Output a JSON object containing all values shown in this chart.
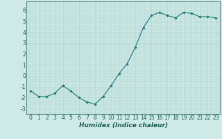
{
  "x": [
    0,
    1,
    2,
    3,
    4,
    5,
    6,
    7,
    8,
    9,
    10,
    11,
    12,
    13,
    14,
    15,
    16,
    17,
    18,
    19,
    20,
    21,
    22,
    23
  ],
  "y": [
    -1.4,
    -1.9,
    -1.9,
    -1.6,
    -0.9,
    -1.4,
    -2.0,
    -2.4,
    -2.6,
    -1.9,
    -0.9,
    0.2,
    1.1,
    2.6,
    4.4,
    5.5,
    5.8,
    5.5,
    5.3,
    5.8,
    5.7,
    5.4,
    5.4,
    5.3
  ],
  "line_color": "#1a7a6e",
  "marker": "D",
  "marker_size": 1.8,
  "background_color": "#ceeae7",
  "grid_color": "#b0d5d0",
  "xlabel": "Humidex (Indice chaleur)",
  "xlim": [
    -0.5,
    23.5
  ],
  "ylim": [
    -3.5,
    6.8
  ],
  "yticks": [
    -3,
    -2,
    -1,
    0,
    1,
    2,
    3,
    4,
    5,
    6
  ],
  "xticks": [
    0,
    1,
    2,
    3,
    4,
    5,
    6,
    7,
    8,
    9,
    10,
    11,
    12,
    13,
    14,
    15,
    16,
    17,
    18,
    19,
    20,
    21,
    22,
    23
  ],
  "tick_fontsize": 5.5,
  "xlabel_fontsize": 6.5,
  "label_color": "#1a5c55"
}
